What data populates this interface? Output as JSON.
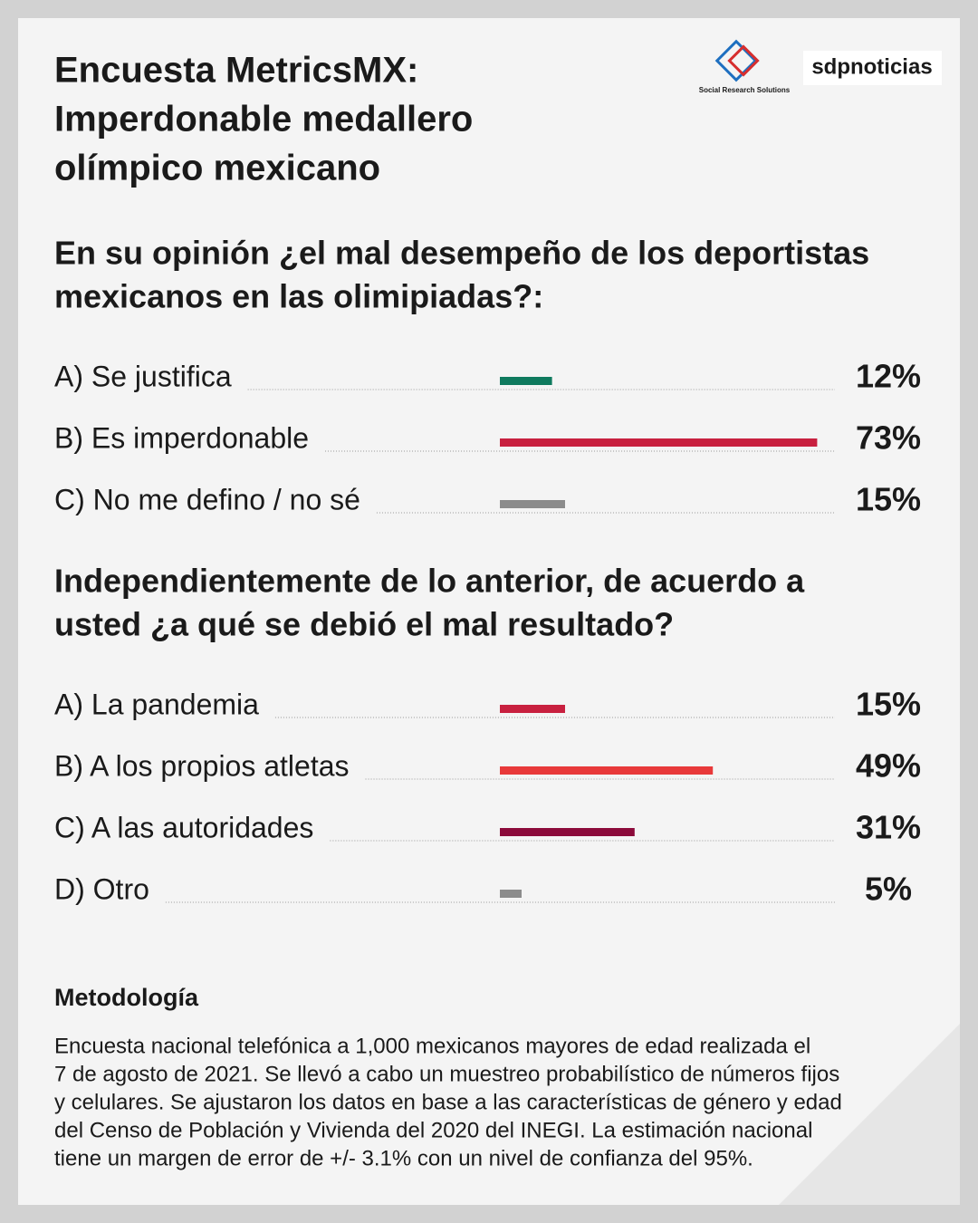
{
  "header": {
    "title_lines": [
      "Encuesta MetricsMX:",
      "Imperdonable medallero",
      "olímpico mexicano"
    ],
    "logos": [
      "Social Research Solutions",
      "sdpnoticias"
    ]
  },
  "chart_data": [
    {
      "type": "bar",
      "title_lines": [
        "En su opinión ¿el mal desempeño de los deportistas",
        "mexicanos en las olimipiadas?:"
      ],
      "categories": [
        "A) Se justifica",
        "B) Es imperdonable",
        "C) No me defino / no sé"
      ],
      "values": [
        12,
        73,
        15
      ],
      "value_labels": [
        "12%",
        "73%",
        "15%"
      ],
      "colors": [
        "#0f7a5e",
        "#c8203f",
        "#8c8c8c"
      ]
    },
    {
      "type": "bar",
      "title_lines": [
        "Independientemente de lo anterior, de acuerdo a",
        "usted ¿a qué se debió el mal resultado?"
      ],
      "categories": [
        "A) La pandemia",
        "B) A los propios atletas",
        "C) A las autoridades",
        "D) Otro"
      ],
      "values": [
        15,
        49,
        31,
        5
      ],
      "value_labels": [
        "15%",
        "49%",
        "31%",
        "5%"
      ],
      "colors": [
        "#c8203f",
        "#e8393a",
        "#8b0a3a",
        "#8c8c8c"
      ]
    }
  ],
  "methodology": {
    "heading": "Metodología",
    "lines": [
      "Encuesta nacional telefónica a 1,000 mexicanos mayores de edad realizada el",
      "7 de agosto de 2021. Se llevó a cabo un muestreo probabilístico de números fijos",
      "y celulares. Se ajustaron los datos en base a las características de género y edad",
      "del Censo de Población y Vivienda del 2020 del INEGI. La estimación nacional",
      "tiene un margen de error de +/- 3.1% con un nivel de confianza del 95%."
    ]
  }
}
